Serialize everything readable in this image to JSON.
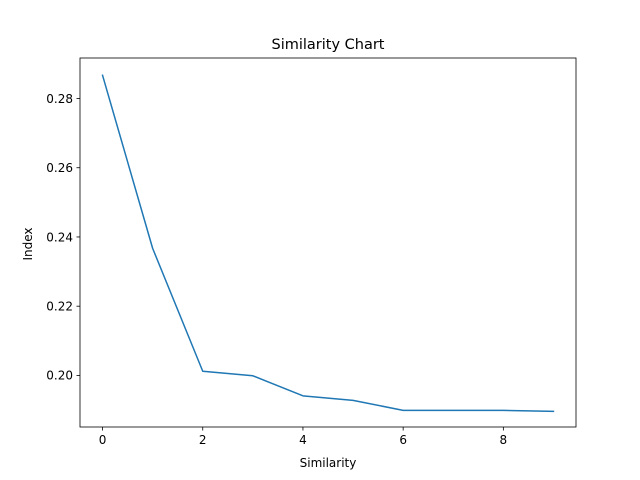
{
  "chart_data": {
    "type": "line",
    "title": "Similarity Chart",
    "xlabel": "Similarity",
    "ylabel": "Index",
    "xlim": [
      -0.45,
      9.45
    ],
    "ylim": [
      0.1851,
      0.2917
    ],
    "xticks": [
      0,
      2,
      4,
      6,
      8
    ],
    "yticks": [
      0.2,
      0.22,
      0.24,
      0.26,
      0.28
    ],
    "xtick_labels": [
      "0",
      "2",
      "4",
      "6",
      "8"
    ],
    "ytick_labels": [
      "0.20",
      "0.22",
      "0.24",
      "0.26",
      "0.28"
    ],
    "grid": false,
    "legend": false,
    "series": [
      {
        "color": "#1f77b4",
        "x": [
          0,
          1,
          2,
          3,
          4,
          5,
          6,
          7,
          8,
          9
        ],
        "y": [
          0.2867,
          0.2367,
          0.2012,
          0.1999,
          0.1941,
          0.1928,
          0.1899,
          0.1899,
          0.1899,
          0.1896
        ]
      }
    ]
  }
}
